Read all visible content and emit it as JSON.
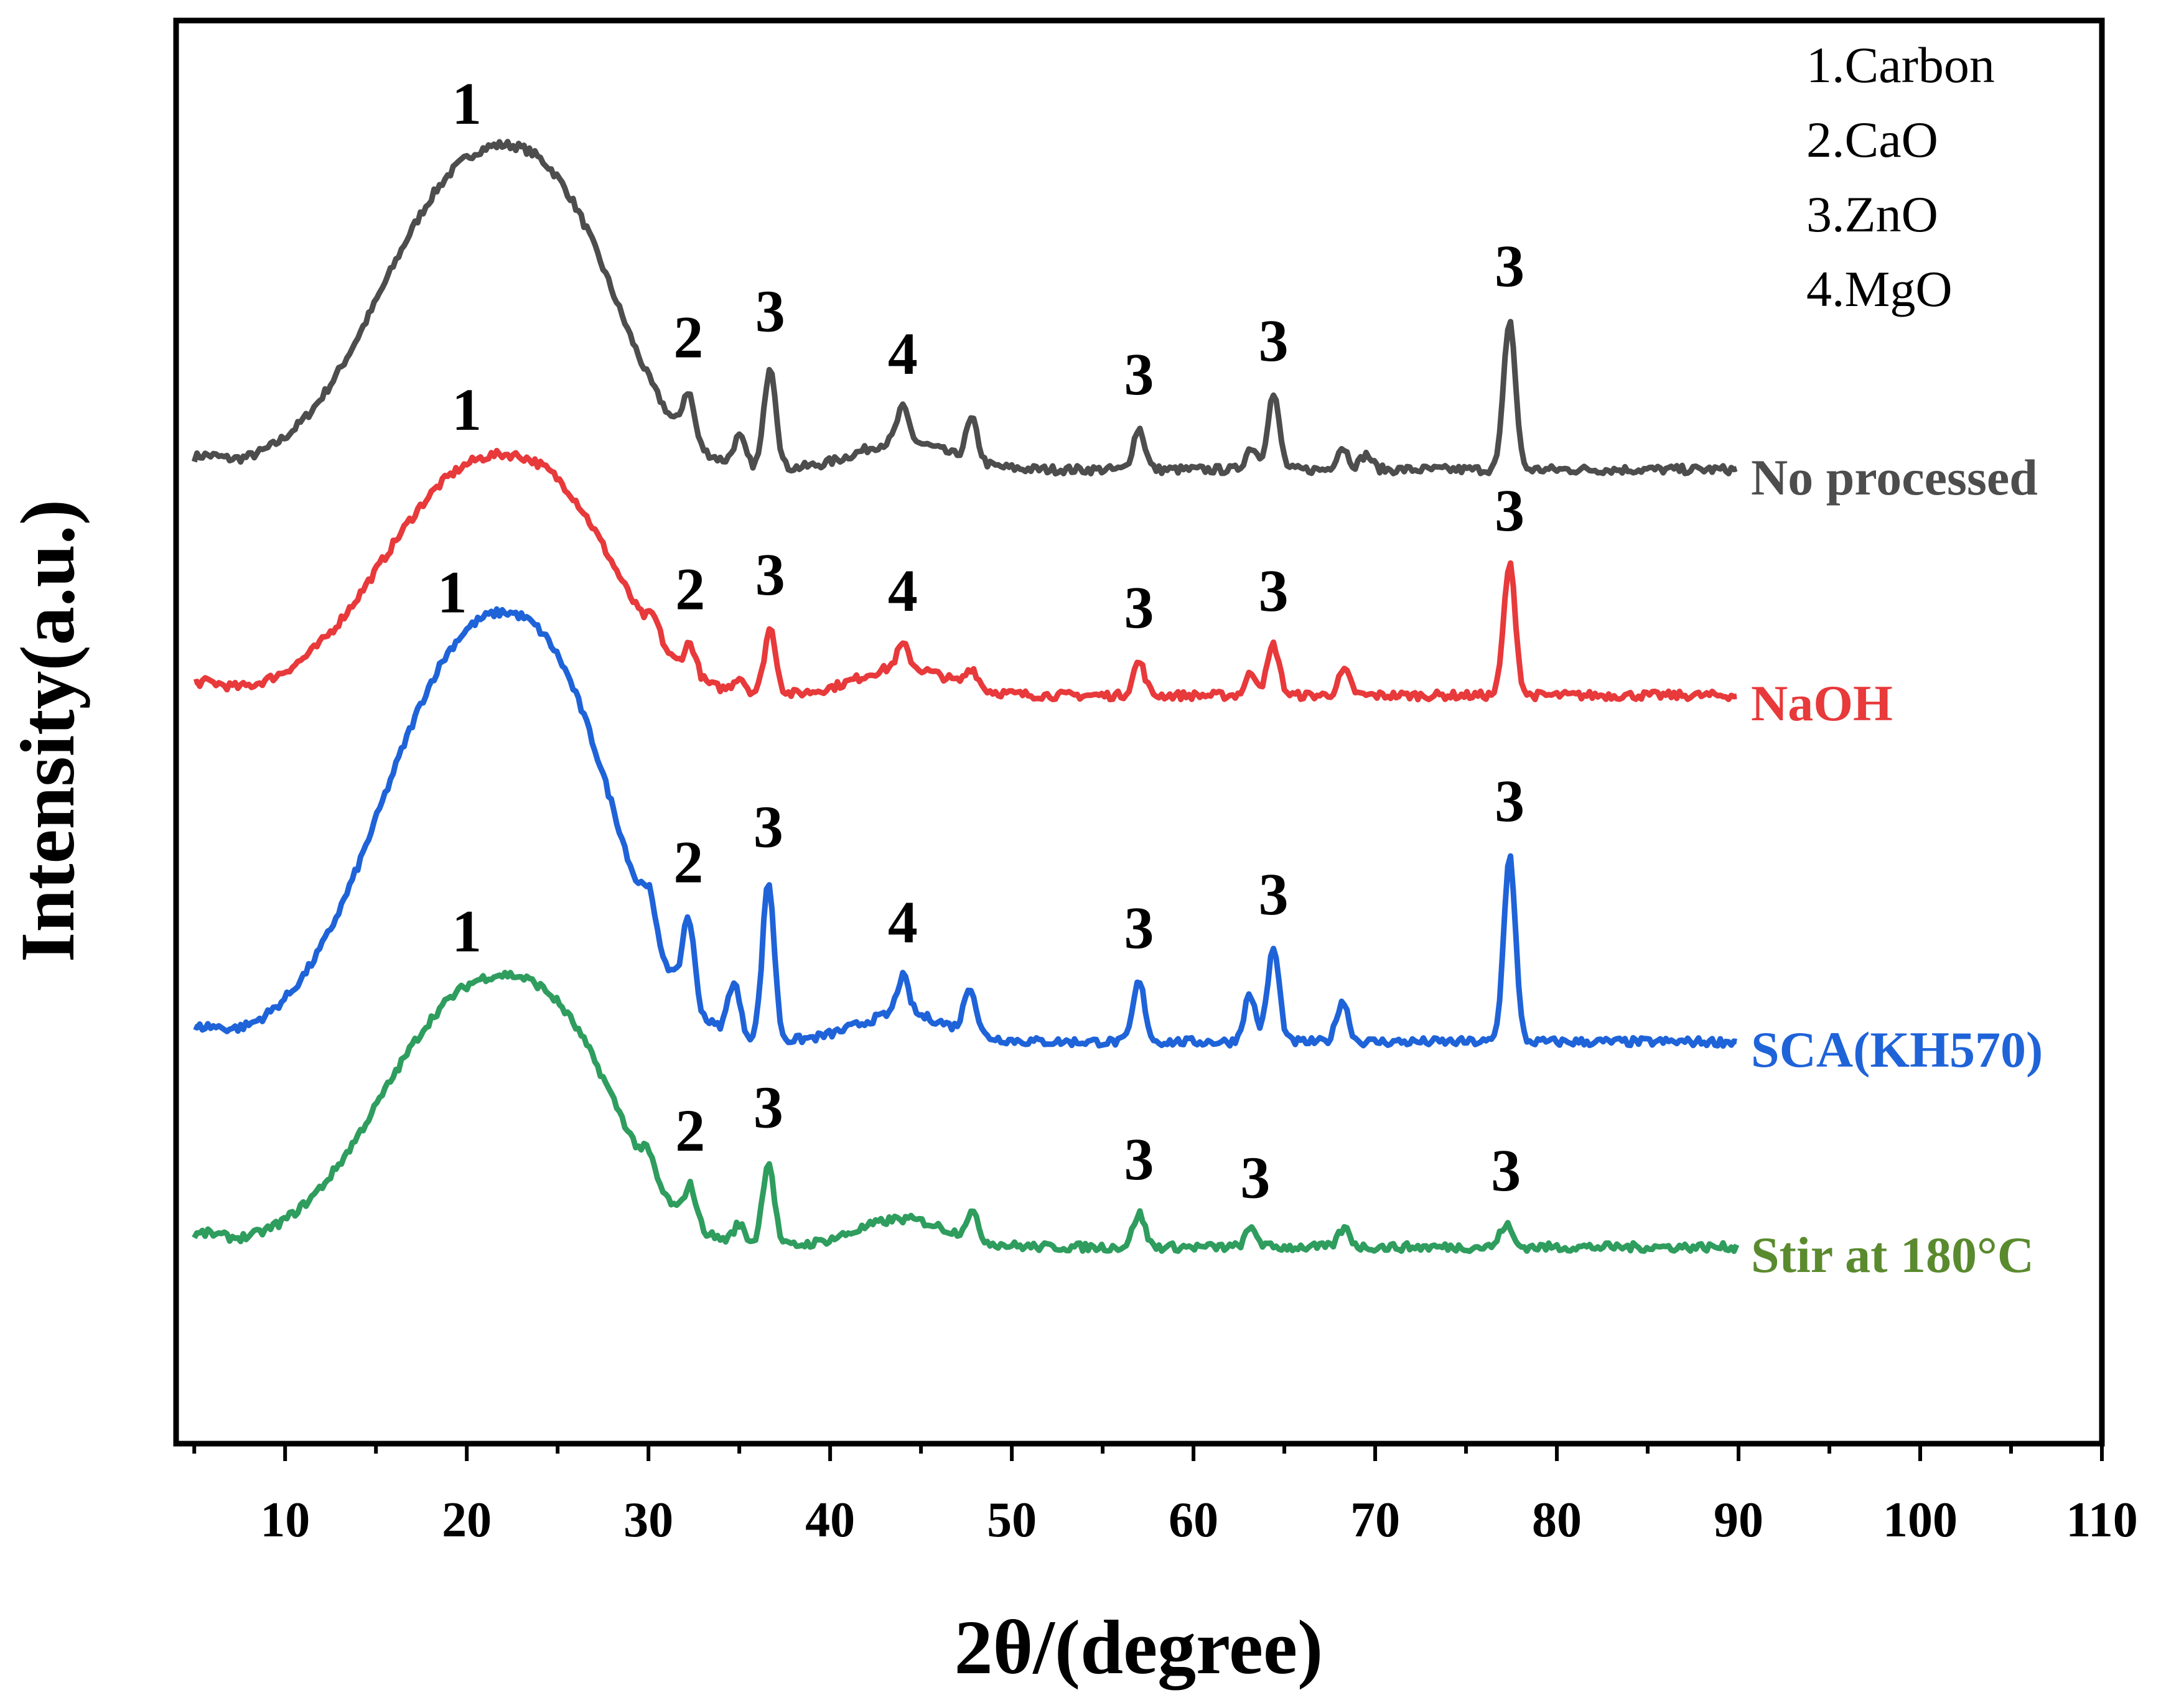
{
  "chart_data": {
    "type": "line",
    "title": "",
    "xlabel": "2θ/(degree)",
    "ylabel": "Intensity(a.u.)",
    "xlim": [
      4,
      110
    ],
    "xticks": [
      10,
      20,
      30,
      40,
      50,
      60,
      70,
      80,
      90,
      100,
      110
    ],
    "y_ticks_shown": false,
    "grid": false,
    "legend_position": "top-right",
    "legend": [
      "1.Carbon",
      "2.CaO",
      "3.ZnO",
      "4.MgO"
    ],
    "peak_positions": {
      "1": 20,
      "2": 32.2,
      "3": [
        36.7,
        57,
        64.4,
        77.4
      ],
      "4": 44
    },
    "series": [
      {
        "name": "No processed",
        "color": "#4d4d4d",
        "baseline": 0.05,
        "hump": 1.55,
        "peaks": [
          [
            32.2,
            0.25
          ],
          [
            35,
            0.15
          ],
          [
            36.7,
            0.55
          ],
          [
            44,
            0.18
          ],
          [
            47.8,
            0.22
          ],
          [
            57,
            0.22
          ],
          [
            63.2,
            0.12
          ],
          [
            64.4,
            0.4
          ],
          [
            68.2,
            0.12
          ],
          [
            69.5,
            0.08
          ],
          [
            77.4,
            0.8
          ]
        ],
        "peak_labels": [
          {
            "text": "1",
            "x": 20
          },
          {
            "text": "2",
            "x": 32.2
          },
          {
            "text": "3",
            "x": 36.7
          },
          {
            "text": "4",
            "x": 44
          },
          {
            "text": "3",
            "x": 57
          },
          {
            "text": "3",
            "x": 64.4
          },
          {
            "text": "3",
            "x": 77.4
          }
        ]
      },
      {
        "name": "NaOH",
        "color": "#e8393b",
        "baseline": 0.04,
        "hump": 1.15,
        "peaks": [
          [
            30.3,
            0.1
          ],
          [
            32.3,
            0.16
          ],
          [
            35,
            0.08
          ],
          [
            36.7,
            0.35
          ],
          [
            44,
            0.12
          ],
          [
            47.8,
            0.1
          ],
          [
            57,
            0.18
          ],
          [
            63.2,
            0.12
          ],
          [
            64.4,
            0.27
          ],
          [
            68.3,
            0.13
          ],
          [
            77.4,
            0.7
          ]
        ],
        "peak_labels": [
          {
            "text": "1",
            "x": 20
          },
          {
            "text": "2",
            "x": 32.3
          },
          {
            "text": "3",
            "x": 36.7
          },
          {
            "text": "4",
            "x": 44
          },
          {
            "text": "3",
            "x": 57
          },
          {
            "text": "3",
            "x": 64.4
          },
          {
            "text": "3",
            "x": 77.4
          }
        ]
      },
      {
        "name": "SCA(KH570)",
        "color": "#1f63d9",
        "baseline": 0.05,
        "hump": 2.05,
        "peaks": [
          [
            30,
            0.18
          ],
          [
            32.2,
            0.45
          ],
          [
            34.7,
            0.28
          ],
          [
            36.6,
            0.85
          ],
          [
            44,
            0.2
          ],
          [
            47.7,
            0.25
          ],
          [
            57,
            0.32
          ],
          [
            63.1,
            0.25
          ],
          [
            64.4,
            0.5
          ],
          [
            68.2,
            0.22
          ],
          [
            77.4,
            1.0
          ]
        ],
        "peak_labels": [
          {
            "text": "1",
            "x": 19.2
          },
          {
            "text": "2",
            "x": 32.2
          },
          {
            "text": "3",
            "x": 36.6
          },
          {
            "text": "4",
            "x": 44
          },
          {
            "text": "3",
            "x": 57
          },
          {
            "text": "3",
            "x": 64.4
          },
          {
            "text": "3",
            "x": 77.4
          }
        ]
      },
      {
        "name": "Stir at 180°C",
        "color": "#2e9d5e",
        "label_color": "#5a8a2e",
        "baseline": 0.05,
        "hump": 1.3,
        "peaks": [
          [
            30,
            0.1
          ],
          [
            32.3,
            0.2
          ],
          [
            35,
            0.1
          ],
          [
            36.6,
            0.45
          ],
          [
            47.8,
            0.14
          ],
          [
            57,
            0.18
          ],
          [
            63.2,
            0.1
          ],
          [
            68.3,
            0.1
          ],
          [
            77.2,
            0.12
          ]
        ],
        "peak_labels": [
          {
            "text": "1",
            "x": 20
          },
          {
            "text": "2",
            "x": 32.3
          },
          {
            "text": "3",
            "x": 36.6
          },
          {
            "text": "3",
            "x": 57
          },
          {
            "text": "3",
            "x": 63.4
          },
          {
            "text": "3",
            "x": 77.2
          }
        ]
      }
    ]
  }
}
